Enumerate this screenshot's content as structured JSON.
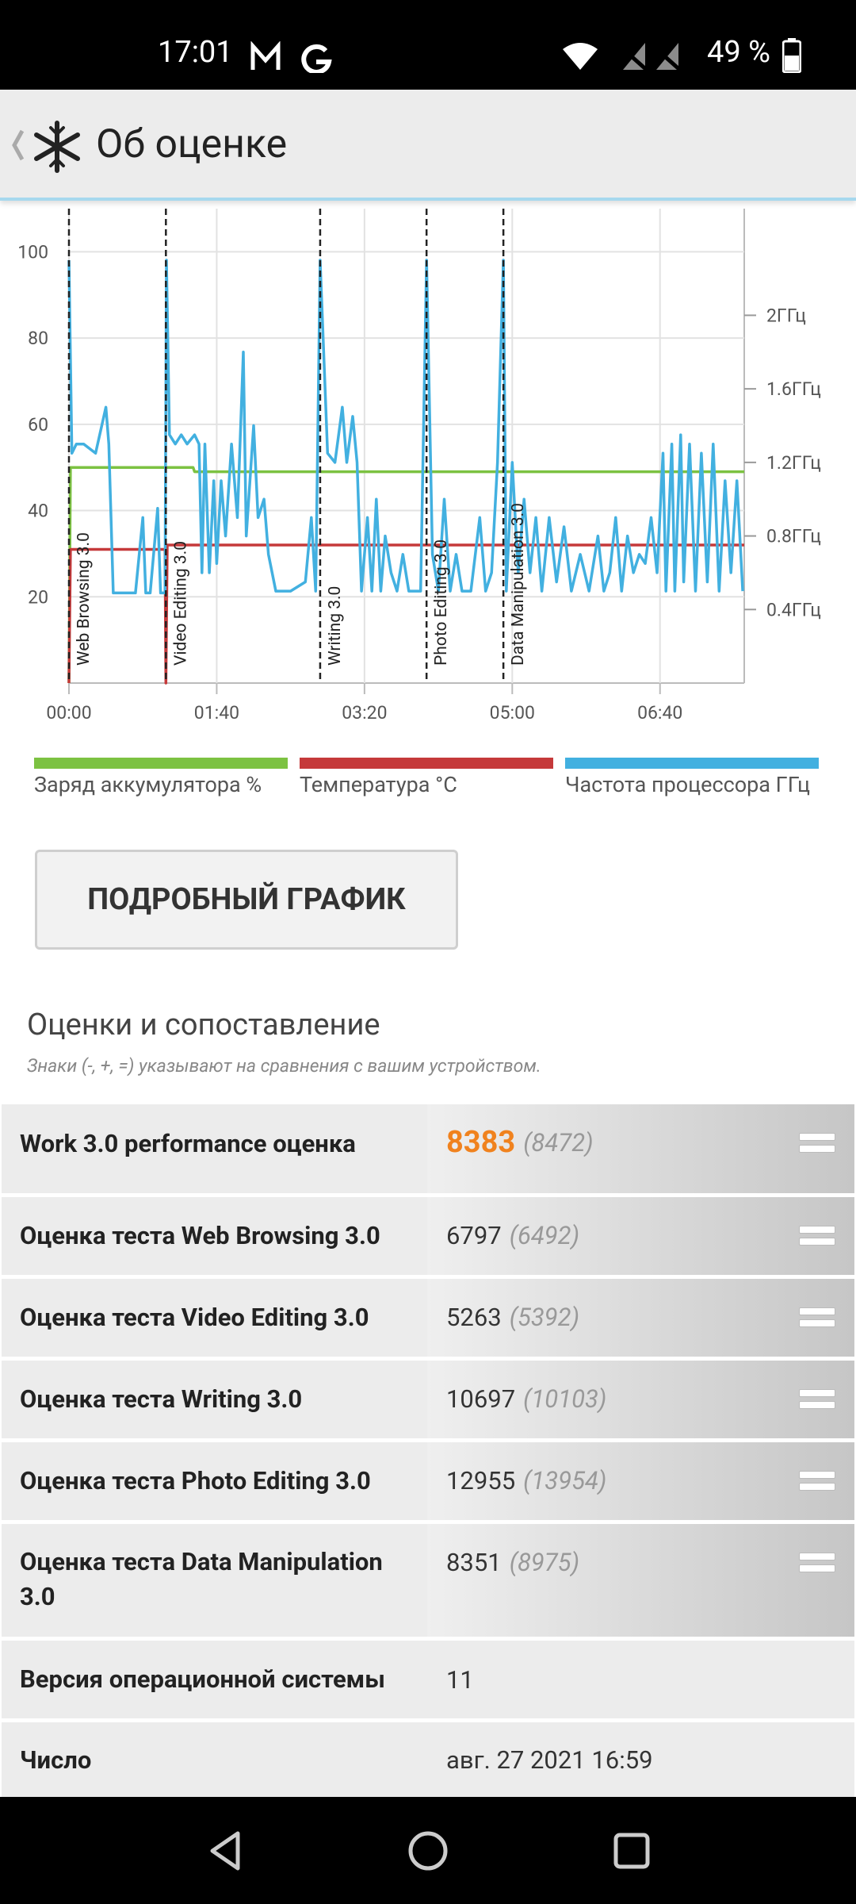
{
  "status_bar": {
    "time": "17:01",
    "battery": "49 %"
  },
  "header": {
    "title": "Об оценке"
  },
  "chart_data": {
    "type": "line",
    "x_label_format": "mm:ss",
    "xlim": [
      0,
      457
    ],
    "xticks": [
      {
        "value": 0,
        "label": "00:00"
      },
      {
        "value": 100,
        "label": "01:40"
      },
      {
        "value": 200,
        "label": "03:20"
      },
      {
        "value": 300,
        "label": "05:00"
      },
      {
        "value": 400,
        "label": "06:40"
      }
    ],
    "ylim": [
      0,
      110
    ],
    "yticks": [
      20,
      40,
      60,
      80,
      100
    ],
    "y2lim": [
      0,
      2.58
    ],
    "y2ticks": [
      {
        "value": 0.4,
        "label": "0.4ГГц"
      },
      {
        "value": 0.8,
        "label": "0.8ГГц"
      },
      {
        "value": 1.2,
        "label": "1.2ГГц"
      },
      {
        "value": 1.6,
        "label": "1.6ГГц"
      },
      {
        "value": 2,
        "label": "2ГГц"
      }
    ],
    "grid": true,
    "legend": "bottom",
    "annotations": [
      {
        "x": 0,
        "text": "Web Browsing 3.0"
      },
      {
        "x": 65.6,
        "text": "Video Editing 3.0"
      },
      {
        "x": 170,
        "text": "Writing 3.0"
      },
      {
        "x": 242,
        "text": "Photo Editing 3.0"
      },
      {
        "x": 294,
        "text": "Data Manipulation 3.0"
      }
    ],
    "series": [
      {
        "name": "Заряд аккумулятора %",
        "color": "#7cc242",
        "x": [
          0,
          1,
          84,
          85,
          457
        ],
        "values": [
          0,
          50,
          50,
          49,
          49
        ]
      },
      {
        "name": "Температура °C",
        "color": "#c5393a",
        "x": [
          0,
          1,
          65,
          65.6,
          66.5,
          457
        ],
        "values": [
          0,
          31,
          31,
          0,
          32,
          32
        ]
      },
      {
        "name": "Частота процессора ГГц",
        "color": "#42b0e0",
        "axis": "y2",
        "x": [
          0,
          2,
          5,
          10,
          18,
          25,
          27,
          30,
          45,
          50,
          52,
          55,
          60,
          62,
          65,
          66,
          68,
          72,
          76,
          80,
          85,
          88,
          90,
          92,
          95,
          98,
          100,
          103,
          106,
          110,
          114,
          118,
          120,
          125,
          128,
          132,
          135,
          140,
          150,
          160,
          164,
          167,
          170,
          175,
          180,
          185,
          188,
          192,
          195,
          198,
          202,
          205,
          208,
          211,
          214,
          218,
          222,
          226,
          230,
          238,
          242,
          246,
          250,
          254,
          258,
          262,
          266,
          272,
          278,
          282,
          286,
          290,
          294,
          296,
          300,
          304,
          308,
          312,
          316,
          320,
          325,
          330,
          335,
          340,
          346,
          352,
          358,
          362,
          366,
          370,
          374,
          378,
          382,
          386,
          390,
          394,
          398,
          402,
          404,
          408,
          410,
          414,
          416,
          420,
          424,
          428,
          432,
          436,
          440,
          444,
          448,
          452,
          456
        ],
        "values": [
          2.3,
          1.25,
          1.3,
          1.3,
          1.25,
          1.5,
          1.3,
          0.49,
          0.49,
          0.9,
          0.49,
          0.49,
          0.95,
          0.49,
          0.49,
          2.3,
          1.35,
          1.3,
          1.35,
          1.3,
          1.35,
          1.3,
          0.6,
          1.3,
          0.6,
          1.1,
          0.65,
          1.1,
          0.8,
          1.3,
          0.9,
          1.8,
          0.8,
          1.4,
          0.9,
          1.0,
          0.7,
          0.5,
          0.5,
          0.55,
          0.9,
          0.5,
          2.3,
          1.25,
          1.2,
          1.5,
          1.2,
          1.45,
          1.2,
          0.5,
          0.9,
          0.5,
          1.0,
          0.5,
          0.8,
          0.6,
          0.5,
          0.7,
          0.5,
          0.5,
          2.3,
          0.7,
          0.5,
          1.0,
          0.5,
          0.7,
          0.5,
          0.5,
          0.9,
          0.5,
          0.6,
          1.2,
          2.3,
          0.5,
          1.2,
          0.6,
          1.0,
          0.6,
          0.9,
          0.5,
          0.9,
          0.55,
          0.85,
          0.5,
          0.7,
          0.5,
          0.8,
          0.5,
          0.6,
          0.9,
          0.5,
          0.8,
          0.6,
          0.7,
          0.65,
          0.9,
          0.6,
          1.25,
          0.5,
          1.3,
          0.5,
          1.35,
          0.55,
          1.3,
          0.5,
          1.25,
          0.55,
          1.3,
          0.5,
          1.1,
          0.6,
          1.1,
          0.5
        ]
      }
    ]
  },
  "button": {
    "label": "ПОДРОБНЫЙ ГРАФИК"
  },
  "section": {
    "title": "Оценки и сопоставление",
    "subtitle": "Знаки (-, +, =) указывают на сравнения с вашим устройством."
  },
  "table": {
    "rows": [
      [
        "Work 3.0 performance оценка",
        "8383",
        "(8472)"
      ],
      [
        "Оценка теста Web Browsing 3.0",
        "6797",
        "(6492)"
      ],
      [
        "Оценка теста Video Editing 3.0",
        "5263",
        "(5392)"
      ],
      [
        "Оценка теста Writing 3.0",
        "10697",
        "(10103)"
      ],
      [
        "Оценка теста Photo Editing 3.0",
        "12955",
        "(13954)"
      ],
      [
        "Оценка теста Data Manipulation 3.0",
        "8351",
        "(8975)"
      ],
      [
        "Версия операционной системы",
        "11"
      ],
      [
        "Число",
        "авг. 27 2021 16:59"
      ]
    ]
  }
}
